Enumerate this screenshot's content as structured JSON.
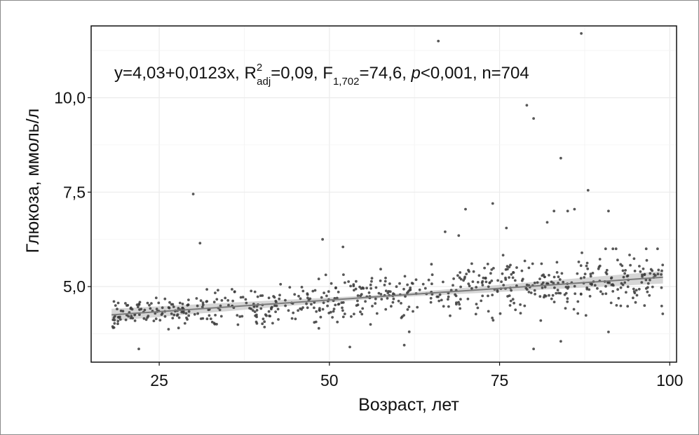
{
  "chart_data": {
    "type": "scatter",
    "xlabel": "Возраст, лет",
    "ylabel": "Глюкоза, ммоль/л",
    "xlim": [
      15,
      101
    ],
    "ylim": [
      3.0,
      11.9
    ],
    "xticks": [
      25,
      50,
      75,
      100
    ],
    "yticks": [
      5.0,
      7.5,
      10.0
    ],
    "xtick_labels": [
      "25",
      "50",
      "75",
      "100"
    ],
    "ytick_labels": [
      "5,0",
      "7,5",
      "10,0"
    ],
    "grid": true,
    "annotation": {
      "part1": "y=4,03+0,0123x, R",
      "r_sup": "2",
      "r_sub": "adj",
      "part2": "=0,09, F",
      "f_sub": "1,702",
      "part3": "=74,6, ",
      "p_italic": "p",
      "part4": "<0,001, n=704"
    },
    "trend_line": {
      "intercept": 4.03,
      "slope": 0.0123,
      "x_range": [
        18,
        99
      ],
      "ci_halfwidth": 0.12
    },
    "n": 704,
    "colors": {
      "points": "#3a3a3a",
      "line": "#7a7a7a",
      "band": "#c8c8c8",
      "grid": "#ebebeb"
    },
    "outliers": [
      {
        "x": 30,
        "y": 7.45
      },
      {
        "x": 31,
        "y": 6.15
      },
      {
        "x": 49,
        "y": 6.25
      },
      {
        "x": 52,
        "y": 6.05
      },
      {
        "x": 66,
        "y": 11.5
      },
      {
        "x": 67,
        "y": 6.45
      },
      {
        "x": 69,
        "y": 6.35
      },
      {
        "x": 70,
        "y": 7.05
      },
      {
        "x": 74,
        "y": 7.2
      },
      {
        "x": 76,
        "y": 6.55
      },
      {
        "x": 79,
        "y": 9.8
      },
      {
        "x": 80,
        "y": 9.45
      },
      {
        "x": 82,
        "y": 6.7
      },
      {
        "x": 83,
        "y": 7.0
      },
      {
        "x": 84,
        "y": 8.4
      },
      {
        "x": 85,
        "y": 7.0
      },
      {
        "x": 86,
        "y": 7.05
      },
      {
        "x": 87,
        "y": 11.7
      },
      {
        "x": 88,
        "y": 7.55
      },
      {
        "x": 91,
        "y": 7.0
      },
      {
        "x": 22,
        "y": 3.35
      },
      {
        "x": 53,
        "y": 3.4
      },
      {
        "x": 61,
        "y": 3.45
      },
      {
        "x": 80,
        "y": 3.35
      },
      {
        "x": 84,
        "y": 3.55
      },
      {
        "x": 91,
        "y": 3.8
      }
    ]
  }
}
